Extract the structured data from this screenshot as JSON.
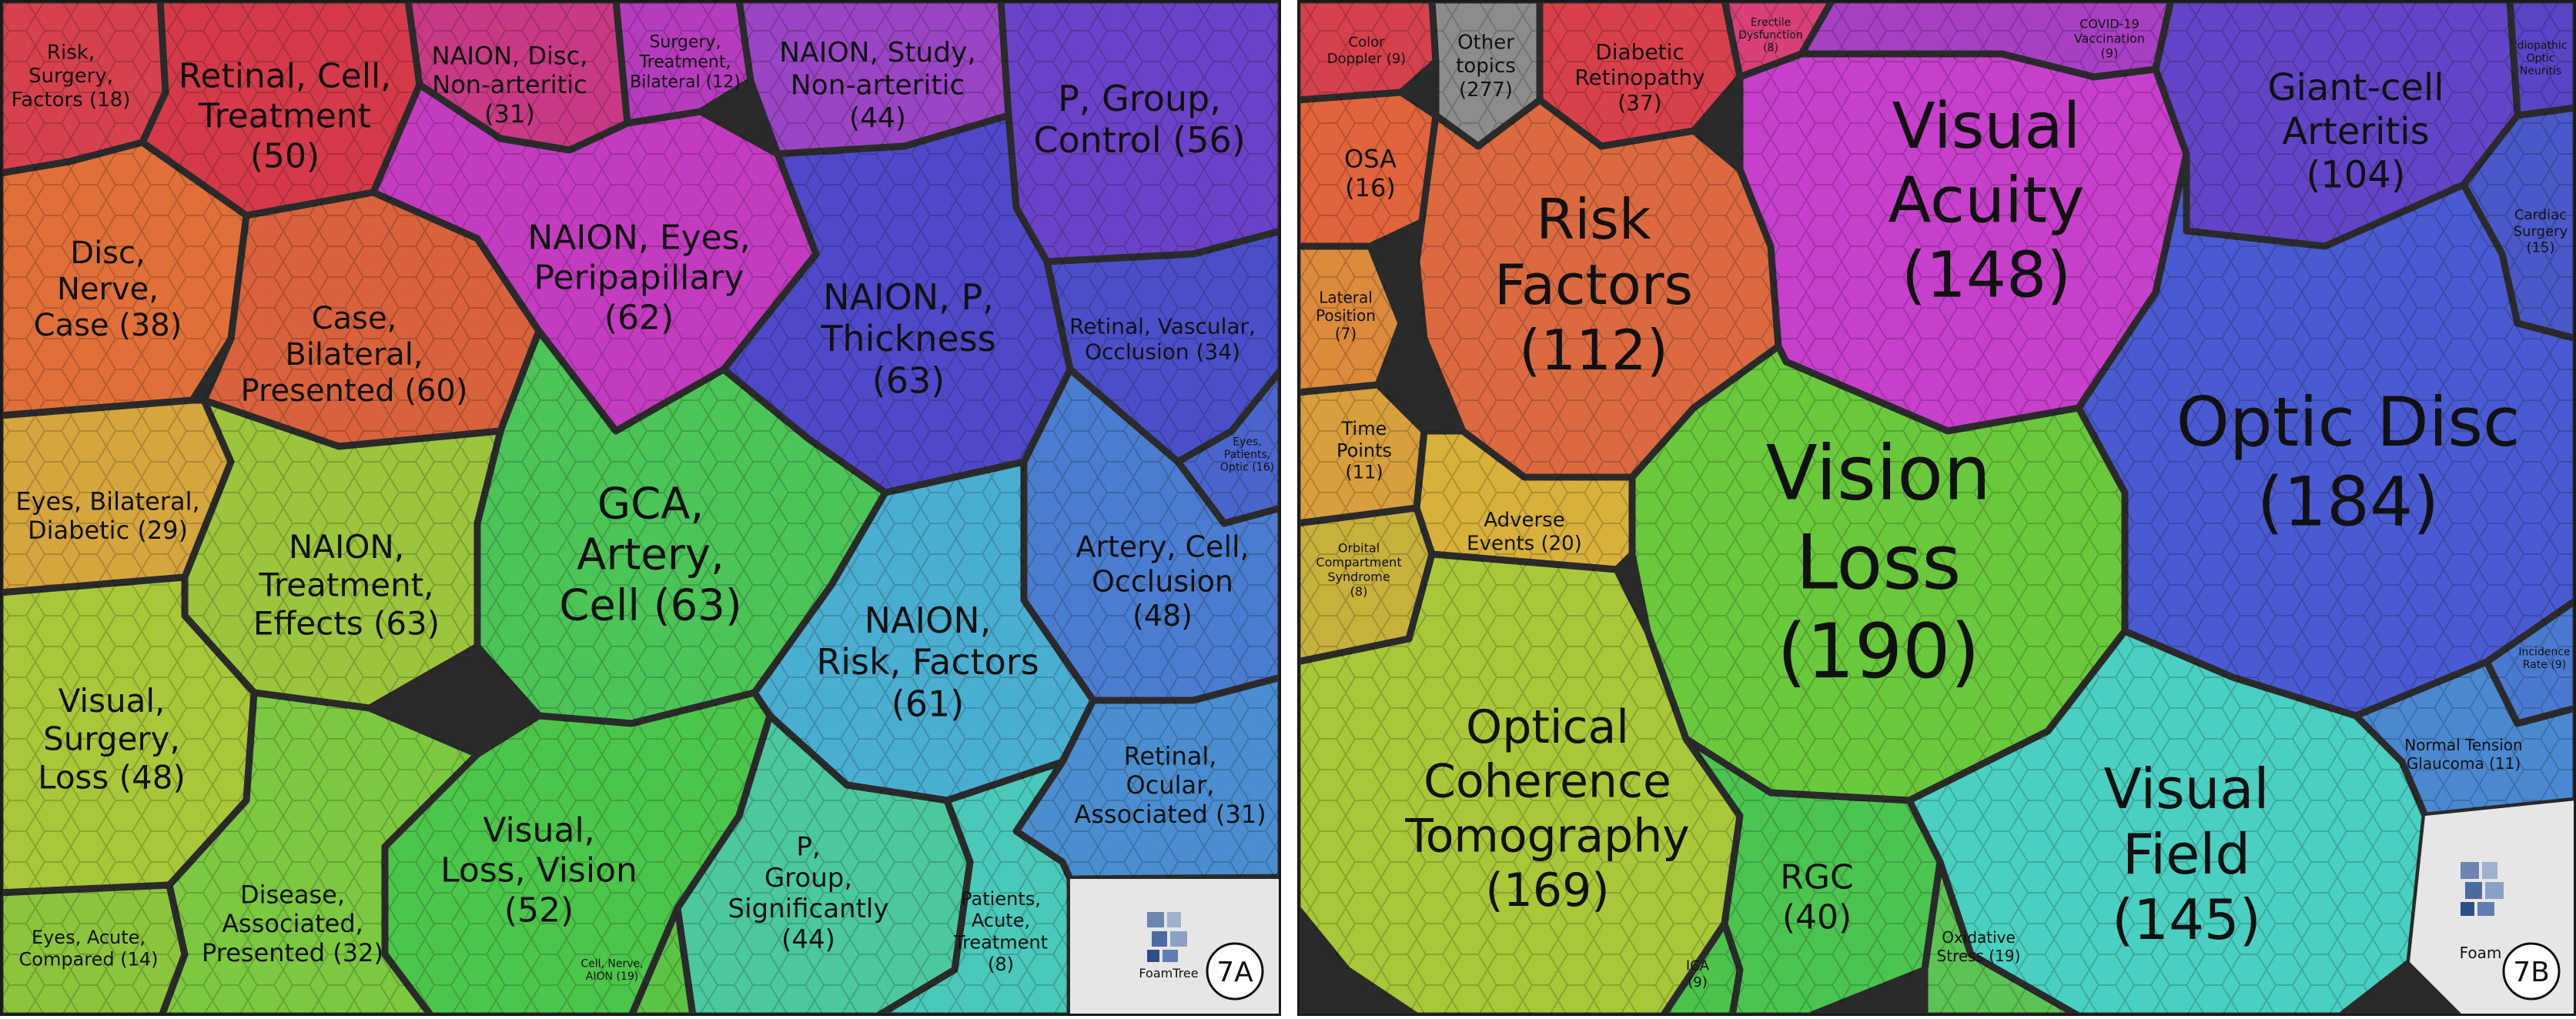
{
  "panels": [
    {
      "id": "7A",
      "label": "7A",
      "cells": [
        {
          "id": "a1",
          "lines": [
            "Risk,",
            "Surgery,",
            "Factors (18)"
          ],
          "color": "#d6414e"
        },
        {
          "id": "a2",
          "lines": [
            "Retinal, Cell,",
            "Treatment",
            "(50)"
          ],
          "color": "#d43a4a"
        },
        {
          "id": "a3",
          "lines": [
            "NAION, Disc,",
            "Non-arteritic",
            "(31)"
          ],
          "color": "#c93a84"
        },
        {
          "id": "a4",
          "lines": [
            "Surgery,",
            "Treatment,",
            "Bilateral (12)"
          ],
          "color": "#b53cbc"
        },
        {
          "id": "a5",
          "lines": [
            "NAION, Study,",
            "Non-arteritic",
            "(44)"
          ],
          "color": "#9a45c4"
        },
        {
          "id": "a6",
          "lines": [
            "P, Group,",
            "Control (56)"
          ],
          "color": "#6a42c8"
        },
        {
          "id": "a7",
          "lines": [
            "Disc,",
            "Nerve,",
            "Case (38)"
          ],
          "color": "#e0703a"
        },
        {
          "id": "a8",
          "lines": [
            "Case,",
            "Bilateral,",
            "Presented (60)"
          ],
          "color": "#d8623c"
        },
        {
          "id": "a9",
          "lines": [
            "NAION, Eyes,",
            "Peripapillary",
            "(62)"
          ],
          "color": "#c33cc0"
        },
        {
          "id": "a10",
          "lines": [
            "NAION, P,",
            "Thickness",
            "(63)"
          ],
          "color": "#4f48c8"
        },
        {
          "id": "a11",
          "lines": [
            "Retinal, Vascular,",
            "Occlusion (34)"
          ],
          "color": "#4a4fc8"
        },
        {
          "id": "a12",
          "lines": [
            "Eyes, Bilateral,",
            "Diabetic (29)"
          ],
          "color": "#d6a63e"
        },
        {
          "id": "a13",
          "lines": [
            "Eyes,",
            "Patients,",
            "Optic (16)"
          ],
          "color": "#4a66cc"
        },
        {
          "id": "a14",
          "lines": [
            "GCA,",
            "Artery,",
            "Cell (63)"
          ],
          "color": "#4cc458"
        },
        {
          "id": "a15",
          "lines": [
            "Artery, Cell,",
            "Occlusion",
            "(48)"
          ],
          "color": "#4a7dd0"
        },
        {
          "id": "a16",
          "lines": [
            "NAION,",
            "Treatment,",
            "Effects (63)"
          ],
          "color": "#9cc43c"
        },
        {
          "id": "a17",
          "lines": [
            "Visual,",
            "Surgery,",
            "Loss (48)"
          ],
          "color": "#a8c83a"
        },
        {
          "id": "a18",
          "lines": [
            "NAION,",
            "Risk, Factors",
            "(61)"
          ],
          "color": "#4aaed0"
        },
        {
          "id": "a19",
          "lines": [
            "Retinal,",
            "Ocular,",
            "Associated (31)"
          ],
          "color": "#4a8ed0"
        },
        {
          "id": "a20",
          "lines": [
            "Visual,",
            "Loss, Vision",
            "(52)"
          ],
          "color": "#4cc64a"
        },
        {
          "id": "a21",
          "lines": [
            "P,",
            "Group,",
            "Significantly",
            "(44)"
          ],
          "color": "#4cc8a0"
        },
        {
          "id": "a22",
          "lines": [
            "Eyes, Acute,",
            "Compared (14)"
          ],
          "color": "#8cc43c"
        },
        {
          "id": "a23",
          "lines": [
            "Disease,",
            "Associated,",
            "Presented (32)"
          ],
          "color": "#7cc840"
        },
        {
          "id": "a24",
          "lines": [
            "Cell, Nerve,",
            "AION (19)"
          ],
          "color": "#5cc444"
        },
        {
          "id": "a25",
          "lines": [
            "Patients,",
            "Acute,",
            "Treatment",
            "(8)"
          ],
          "color": "#4ac8b8"
        }
      ],
      "logo_text": "FoamTree"
    },
    {
      "id": "7B",
      "label": "7B",
      "cells": [
        {
          "id": "b1",
          "lines": [
            "Color",
            "Doppler (9)"
          ],
          "color": "#d6414e"
        },
        {
          "id": "b2",
          "lines": [
            "Other",
            "topics",
            "(277)"
          ],
          "color": "#8c8c8c"
        },
        {
          "id": "b3",
          "lines": [
            "Diabetic",
            "Retinopathy",
            "(37)"
          ],
          "color": "#d8404c"
        },
        {
          "id": "b4",
          "lines": [
            "Erectile",
            "Dysfunction",
            "(8)"
          ],
          "color": "#d8407a"
        },
        {
          "id": "b5",
          "lines": [
            "COVID-19",
            "Vaccination",
            "(9)"
          ],
          "color": "#a840c4"
        },
        {
          "id": "b6",
          "lines": [
            "Idiopathic",
            "Optic",
            "Neuritis"
          ],
          "color": "#5a44c6"
        },
        {
          "id": "b7",
          "lines": [
            "OSA",
            "(16)"
          ],
          "color": "#e0643c"
        },
        {
          "id": "b8",
          "lines": [
            "Risk",
            "Factors",
            "(112)"
          ],
          "color": "#dc6a40"
        },
        {
          "id": "b9",
          "lines": [
            "Visual",
            "Acuity",
            "(148)"
          ],
          "color": "#c640cc"
        },
        {
          "id": "b10",
          "lines": [
            "Giant-cell",
            "Arteritis",
            "(104)"
          ],
          "color": "#6244c6"
        },
        {
          "id": "b11",
          "lines": [
            "Lateral",
            "Position",
            "(7)"
          ],
          "color": "#dc8a3c"
        },
        {
          "id": "b12",
          "lines": [
            "Cardiac",
            "Surgery",
            "(15)"
          ],
          "color": "#4a58c8"
        },
        {
          "id": "b13",
          "lines": [
            "Time",
            "Points",
            "(11)"
          ],
          "color": "#d8a03c"
        },
        {
          "id": "b14",
          "lines": [
            "Vision",
            "Loss",
            "(190)"
          ],
          "color": "#6ac83c"
        },
        {
          "id": "b15",
          "lines": [
            "Optic Disc",
            "(184)"
          ],
          "color": "#4a5ad0"
        },
        {
          "id": "b16",
          "lines": [
            "Adverse",
            "Events (20)"
          ],
          "color": "#d8b03c"
        },
        {
          "id": "b17",
          "lines": [
            "Orbital",
            "Compartment",
            "Syndrome",
            "(8)"
          ],
          "color": "#c8b03c"
        },
        {
          "id": "b18",
          "lines": [
            "Optical",
            "Coherence",
            "Tomography",
            "(169)"
          ],
          "color": "#a8c83a"
        },
        {
          "id": "b19",
          "lines": [
            "Incidence",
            "Rate (9)"
          ],
          "color": "#4a7ad0"
        },
        {
          "id": "b20",
          "lines": [
            "Normal Tension",
            "Glaucoma (11)"
          ],
          "color": "#4a88d0"
        },
        {
          "id": "b21",
          "lines": [
            "Visual",
            "Field",
            "(145)"
          ],
          "color": "#4ad0c0"
        },
        {
          "id": "b22",
          "lines": [
            "RGC",
            "(40)"
          ],
          "color": "#4cc450"
        },
        {
          "id": "b23",
          "lines": [
            "Oxidative",
            "Stress (19)"
          ],
          "color": "#5cc454"
        },
        {
          "id": "b24",
          "lines": [
            "ICA",
            "(9)"
          ],
          "color": "#4cc44c"
        }
      ],
      "logo_text": "Foam"
    }
  ]
}
